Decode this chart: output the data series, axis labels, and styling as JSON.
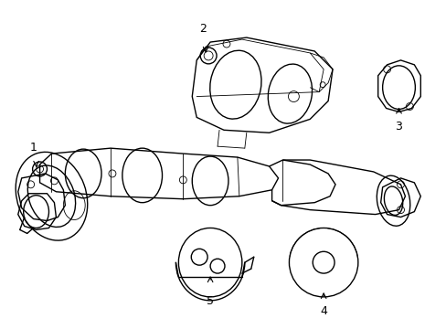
{
  "background_color": "#ffffff",
  "line_color": "#000000",
  "lw": 1.0,
  "tlw": 0.6,
  "fig_width": 4.89,
  "fig_height": 3.6,
  "dpi": 100
}
